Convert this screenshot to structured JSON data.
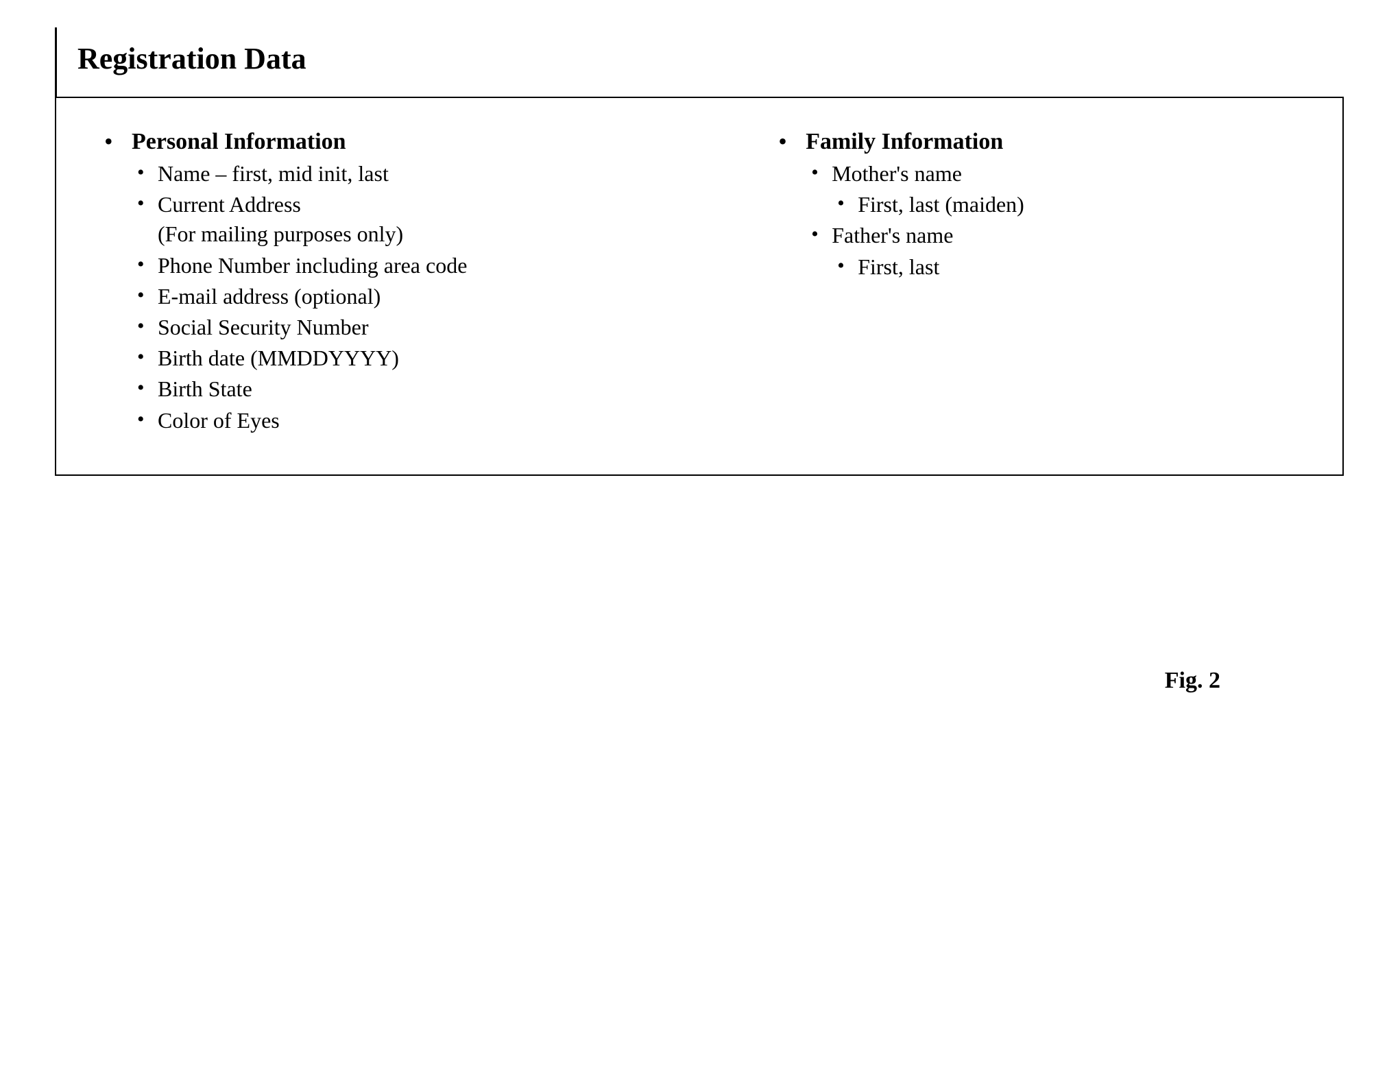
{
  "title": "Registration Data",
  "figure_caption": "Fig. 2",
  "box": {
    "border_color": "#000000",
    "background_color": "#ffffff",
    "text_color": "#000000"
  },
  "typography": {
    "title_fontsize": 44,
    "heading_fontsize": 34,
    "body_fontsize": 32,
    "caption_fontsize": 34,
    "font_family": "Times New Roman"
  },
  "columns": {
    "left": {
      "heading": "Personal Information",
      "items": [
        {
          "label": "Name – first, mid init, last"
        },
        {
          "label": "Current Address",
          "sub_label": "(For mailing purposes only)"
        },
        {
          "label": "Phone Number including area code"
        },
        {
          "label": "E-mail address (optional)"
        },
        {
          "label": "Social Security Number"
        },
        {
          "label": "Birth date (MMDDYYYY)"
        },
        {
          "label": "Birth State"
        },
        {
          "label": "Color of Eyes"
        }
      ]
    },
    "right": {
      "heading": "Family Information",
      "items": [
        {
          "label": "Mother's name",
          "children": [
            {
              "label": "First, last (maiden)"
            }
          ]
        },
        {
          "label": "Father's name",
          "children": [
            {
              "label": "First, last"
            }
          ]
        }
      ]
    }
  }
}
